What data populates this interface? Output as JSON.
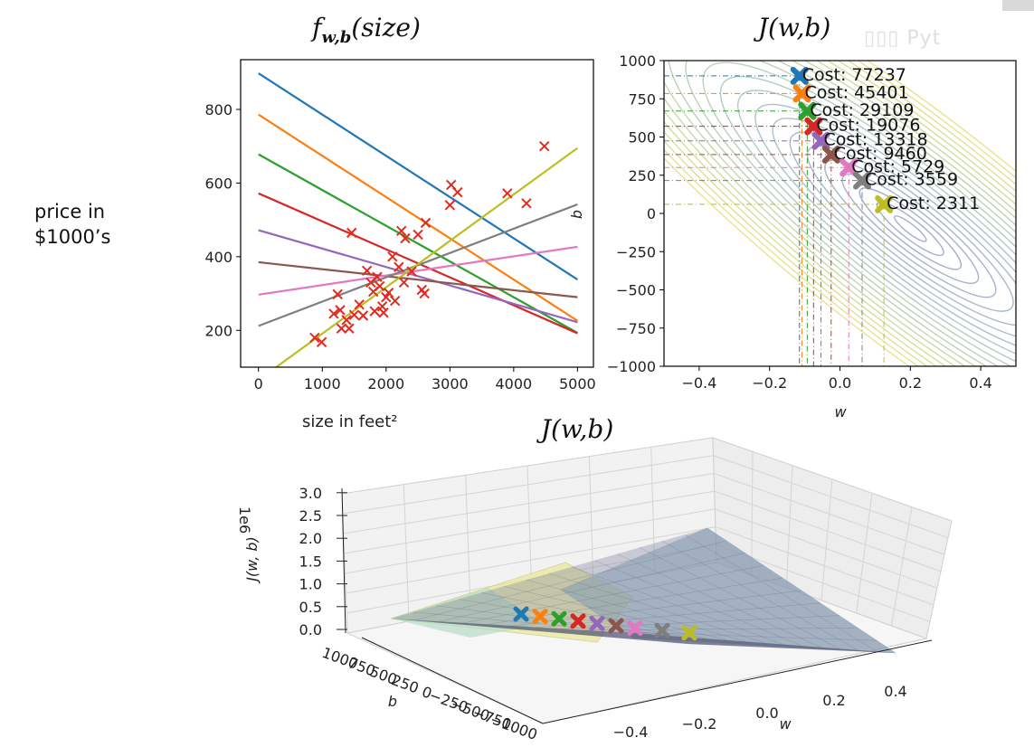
{
  "side_label_line1": "price in",
  "side_label_line2": "$1000’s",
  "chart_data": [
    {
      "type": "scatter",
      "title": "f_{w,b}(size)",
      "title_main": "f",
      "title_sub": "w,b",
      "title_arg": "(size)",
      "xlabel": "size in feet²",
      "ylabel": "",
      "xlim": [
        -280,
        5250
      ],
      "ylim": [
        100,
        935
      ],
      "xticks": [
        0,
        1000,
        2000,
        3000,
        4000,
        5000
      ],
      "yticks": [
        200,
        400,
        600,
        800
      ],
      "points_color": "#e32a1f",
      "points": [
        [
          880,
          180
        ],
        [
          990,
          168
        ],
        [
          1180,
          245
        ],
        [
          1240,
          298
        ],
        [
          1280,
          255
        ],
        [
          1300,
          205
        ],
        [
          1380,
          228
        ],
        [
          1420,
          205
        ],
        [
          1460,
          465
        ],
        [
          1500,
          242
        ],
        [
          1580,
          270
        ],
        [
          1640,
          240
        ],
        [
          1700,
          362
        ],
        [
          1760,
          330
        ],
        [
          1800,
          305
        ],
        [
          1820,
          252
        ],
        [
          1860,
          345
        ],
        [
          1900,
          320
        ],
        [
          1940,
          265
        ],
        [
          1960,
          248
        ],
        [
          2000,
          290
        ],
        [
          2040,
          302
        ],
        [
          2100,
          400
        ],
        [
          2140,
          280
        ],
        [
          2200,
          372
        ],
        [
          2240,
          470
        ],
        [
          2280,
          330
        ],
        [
          2300,
          450
        ],
        [
          2400,
          360
        ],
        [
          2500,
          460
        ],
        [
          2560,
          310
        ],
        [
          2600,
          300
        ],
        [
          2620,
          492
        ],
        [
          3000,
          540
        ],
        [
          3020,
          595
        ],
        [
          3120,
          575
        ],
        [
          3900,
          572
        ],
        [
          4200,
          545
        ],
        [
          4480,
          700
        ]
      ],
      "lines": [
        {
          "intercept": 898,
          "slope": -0.112,
          "color": "#1f77b4"
        },
        {
          "intercept": 786,
          "slope": -0.112,
          "color": "#ff7f0e"
        },
        {
          "intercept": 678,
          "slope": -0.097,
          "color": "#2ca02c"
        },
        {
          "intercept": 572,
          "slope": -0.076,
          "color": "#d62728"
        },
        {
          "intercept": 472,
          "slope": -0.05,
          "color": "#9467bd"
        },
        {
          "intercept": 385,
          "slope": -0.019,
          "color": "#8c564b"
        },
        {
          "intercept": 297,
          "slope": 0.026,
          "color": "#e377c2"
        },
        {
          "intercept": 212,
          "slope": 0.066,
          "color": "#7f7f7f"
        },
        {
          "intercept": 65,
          "slope": 0.126,
          "color": "#bcbd22"
        }
      ]
    },
    {
      "type": "contour",
      "title": "J(w,b)",
      "xlabel": "w",
      "ylabel": "b",
      "xlim": [
        -0.5,
        0.5
      ],
      "ylim": [
        -1000,
        1000
      ],
      "xticks": [
        -0.4,
        -0.2,
        0.0,
        0.2,
        0.4
      ],
      "xtick_labels": [
        "−0.4",
        "−0.2",
        "0.0",
        "0.2",
        "0.4"
      ],
      "yticks": [
        1000,
        750,
        500,
        250,
        0,
        -250,
        -500,
        -750,
        -1000
      ],
      "ytick_labels": [
        "1000",
        "750",
        "500",
        "250",
        "0",
        "−250",
        "−500",
        "−750",
        "−1000"
      ],
      "steps": [
        {
          "w": -0.115,
          "b": 900,
          "cost_label": "Cost: 77237",
          "color": "#1f77b4"
        },
        {
          "w": -0.108,
          "b": 785,
          "cost_label": "Cost: 45401",
          "color": "#ff7f0e"
        },
        {
          "w": -0.093,
          "b": 670,
          "cost_label": "Cost: 29109",
          "color": "#2ca02c"
        },
        {
          "w": -0.075,
          "b": 570,
          "cost_label": "Cost: 19076",
          "color": "#d62728"
        },
        {
          "w": -0.054,
          "b": 475,
          "cost_label": "Cost: 13318",
          "color": "#9467bd"
        },
        {
          "w": -0.025,
          "b": 385,
          "cost_label": "Cost: 9460",
          "color": "#8c564b"
        },
        {
          "w": 0.025,
          "b": 300,
          "cost_label": "Cost: 5729",
          "color": "#e377c2"
        },
        {
          "w": 0.063,
          "b": 215,
          "cost_label": "Cost: 3559",
          "color": "#7f7f7f"
        },
        {
          "w": 0.125,
          "b": 60,
          "cost_label": "Cost: 2311",
          "color": "#bcbd22"
        }
      ]
    },
    {
      "type": "surface",
      "title": "J(w,b)",
      "zlabel": "J(w, b)",
      "z_offset_label": "1e6",
      "zticks": [
        "0.0",
        "0.5",
        "1.0",
        "1.5",
        "2.0",
        "2.5",
        "3.0"
      ],
      "b_ticks": [
        "1000",
        "750",
        "500",
        "250",
        "0",
        "−250",
        "−500",
        "−750",
        "−1000"
      ],
      "w_ticks": [
        "−0.4",
        "−0.2",
        "0.0",
        "0.2",
        "0.4"
      ],
      "b_label": "b",
      "w_label": "w"
    }
  ]
}
